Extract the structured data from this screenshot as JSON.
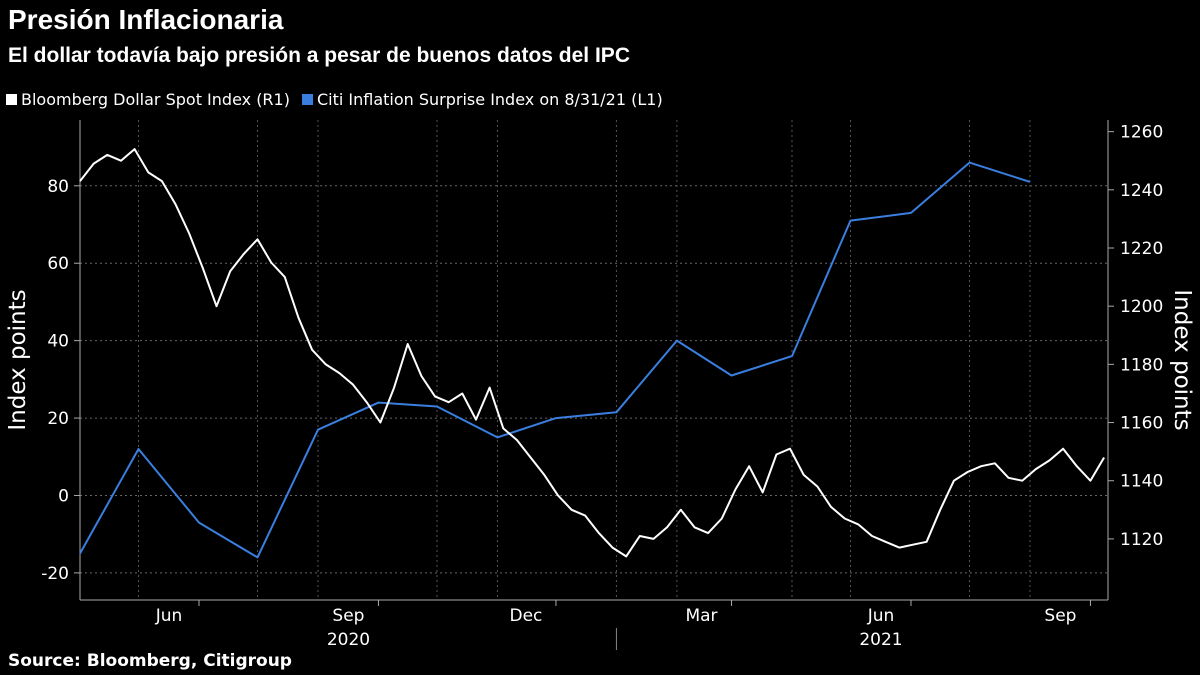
{
  "header": {
    "title": "Presión Inflacionaria",
    "subtitle": "El dollar todavía bajo presión a pesar de buenos datos del IPC"
  },
  "legend": {
    "items": [
      {
        "label": "Bloomberg Dollar Spot Index (R1)",
        "color": "#ffffff"
      },
      {
        "label": "Citi Inflation Surprise Index on 8/31/21 (L1)",
        "color": "#3a7fe0"
      }
    ]
  },
  "footer": {
    "source": "Source: Bloomberg, Citigroup"
  },
  "chart_data": {
    "type": "line",
    "x_axis": {
      "type": "date",
      "range": [
        "2020-04-01",
        "2021-09-10"
      ],
      "month_ticks": [
        "Jun",
        "Sep",
        "Dec",
        "Mar",
        "Jun",
        "Sep"
      ],
      "month_tick_dates": [
        "2020-06-01",
        "2020-09-01",
        "2020-12-01",
        "2021-03-01",
        "2021-06-01",
        "2021-09-01"
      ],
      "year_labels": [
        "2020",
        "2021"
      ],
      "year_label_dates": [
        "2020-09-01",
        "2021-06-01"
      ]
    },
    "y_axis_left": {
      "label": "Index points",
      "range": [
        -27,
        97
      ],
      "ticks": [
        -20,
        0,
        20,
        40,
        60,
        80
      ]
    },
    "y_axis_right": {
      "label": "Index points",
      "range": [
        1099,
        1264
      ],
      "ticks": [
        1120,
        1140,
        1160,
        1180,
        1200,
        1220,
        1240,
        1260
      ]
    },
    "grid": true,
    "legend_position": "top-left",
    "series": [
      {
        "name": "Citi Inflation Surprise Index on 8/31/21 (L1)",
        "axis": "left",
        "color": "#3a7fe0",
        "points": [
          [
            "2020-04-01",
            -15
          ],
          [
            "2020-05-01",
            12
          ],
          [
            "2020-06-01",
            -7
          ],
          [
            "2020-07-01",
            -16
          ],
          [
            "2020-08-01",
            17
          ],
          [
            "2020-09-01",
            24
          ],
          [
            "2020-10-01",
            23
          ],
          [
            "2020-11-01",
            15
          ],
          [
            "2020-12-01",
            20
          ],
          [
            "2021-01-01",
            21.5
          ],
          [
            "2021-02-01",
            40
          ],
          [
            "2021-03-01",
            31
          ],
          [
            "2021-04-01",
            36
          ],
          [
            "2021-05-01",
            71
          ],
          [
            "2021-06-01",
            73
          ],
          [
            "2021-07-01",
            86
          ],
          [
            "2021-08-01",
            81
          ]
        ]
      },
      {
        "name": "Bloomberg Dollar Spot Index (R1)",
        "axis": "right",
        "color": "#ffffff",
        "points": [
          [
            "2020-04-01",
            1243
          ],
          [
            "2020-04-08",
            1249
          ],
          [
            "2020-04-15",
            1252
          ],
          [
            "2020-04-22",
            1250
          ],
          [
            "2020-04-29",
            1254
          ],
          [
            "2020-05-06",
            1246
          ],
          [
            "2020-05-13",
            1243
          ],
          [
            "2020-05-20",
            1235
          ],
          [
            "2020-05-27",
            1225
          ],
          [
            "2020-06-03",
            1213
          ],
          [
            "2020-06-10",
            1200
          ],
          [
            "2020-06-17",
            1212
          ],
          [
            "2020-06-24",
            1218
          ],
          [
            "2020-07-01",
            1223
          ],
          [
            "2020-07-08",
            1215
          ],
          [
            "2020-07-15",
            1210
          ],
          [
            "2020-07-22",
            1196
          ],
          [
            "2020-07-29",
            1185
          ],
          [
            "2020-08-05",
            1180
          ],
          [
            "2020-08-12",
            1177
          ],
          [
            "2020-08-19",
            1173
          ],
          [
            "2020-08-26",
            1167
          ],
          [
            "2020-09-02",
            1160
          ],
          [
            "2020-09-09",
            1172
          ],
          [
            "2020-09-16",
            1187
          ],
          [
            "2020-09-23",
            1176
          ],
          [
            "2020-09-30",
            1169
          ],
          [
            "2020-10-07",
            1167
          ],
          [
            "2020-10-14",
            1170
          ],
          [
            "2020-10-21",
            1161
          ],
          [
            "2020-10-28",
            1172
          ],
          [
            "2020-11-04",
            1158
          ],
          [
            "2020-11-11",
            1154
          ],
          [
            "2020-11-18",
            1148
          ],
          [
            "2020-11-25",
            1142
          ],
          [
            "2020-12-02",
            1135
          ],
          [
            "2020-12-09",
            1130
          ],
          [
            "2020-12-16",
            1128
          ],
          [
            "2020-12-23",
            1122
          ],
          [
            "2020-12-30",
            1117
          ],
          [
            "2021-01-06",
            1114
          ],
          [
            "2021-01-13",
            1121
          ],
          [
            "2021-01-20",
            1120
          ],
          [
            "2021-01-27",
            1124
          ],
          [
            "2021-02-03",
            1130
          ],
          [
            "2021-02-10",
            1124
          ],
          [
            "2021-02-17",
            1122
          ],
          [
            "2021-02-24",
            1127
          ],
          [
            "2021-03-03",
            1137
          ],
          [
            "2021-03-10",
            1145
          ],
          [
            "2021-03-17",
            1136
          ],
          [
            "2021-03-24",
            1149
          ],
          [
            "2021-03-31",
            1151
          ],
          [
            "2021-04-07",
            1142
          ],
          [
            "2021-04-14",
            1138
          ],
          [
            "2021-04-21",
            1131
          ],
          [
            "2021-04-28",
            1127
          ],
          [
            "2021-05-05",
            1125
          ],
          [
            "2021-05-12",
            1121
          ],
          [
            "2021-05-19",
            1119
          ],
          [
            "2021-05-26",
            1117
          ],
          [
            "2021-06-02",
            1118
          ],
          [
            "2021-06-09",
            1119
          ],
          [
            "2021-06-16",
            1130
          ],
          [
            "2021-06-23",
            1140
          ],
          [
            "2021-06-30",
            1143
          ],
          [
            "2021-07-07",
            1145
          ],
          [
            "2021-07-14",
            1146
          ],
          [
            "2021-07-21",
            1141
          ],
          [
            "2021-07-28",
            1140
          ],
          [
            "2021-08-04",
            1144
          ],
          [
            "2021-08-11",
            1147
          ],
          [
            "2021-08-18",
            1151
          ],
          [
            "2021-08-25",
            1145
          ],
          [
            "2021-09-01",
            1140
          ],
          [
            "2021-09-08",
            1148
          ]
        ]
      }
    ]
  }
}
